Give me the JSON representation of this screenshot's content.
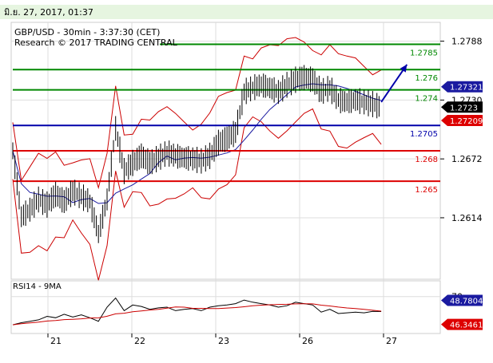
{
  "header": {
    "date_text": "มิ.ย. 27, 2017, 01:37"
  },
  "chart_info": {
    "title": "GBP/USD - 30min - 3:37:30 (CET)",
    "subtitle": "Research © 2017 TRADING CENTRAL"
  },
  "colors": {
    "header_bg": "#e6f5e0",
    "grid": "#dddddd",
    "price_line": "#000000",
    "bollinger": "#cc0000",
    "moving_average": "#1a1aa0",
    "support": "#dd0000",
    "pivot": "#0000aa",
    "resistance": "#008800",
    "current_tag": "#000000",
    "upper_tag": "#1a1aa0",
    "lower_tag": "#dd0000"
  },
  "chart_data": [
    {
      "type": "line",
      "ylim": [
        1.2555,
        1.2805
      ],
      "x_ticks": [
        "21",
        "22",
        "23",
        "26",
        "27"
      ],
      "y_ticks": [
        "1.2788",
        "1.2730",
        "1.2672",
        "1.2614"
      ],
      "levels": [
        {
          "value": 1.2785,
          "label": "1.2785",
          "kind": "resistance"
        },
        {
          "value": 1.276,
          "label": "1.276",
          "kind": "resistance"
        },
        {
          "value": 1.274,
          "label": "1.274",
          "kind": "resistance"
        },
        {
          "value": 1.2705,
          "label": "1.2705",
          "kind": "pivot"
        },
        {
          "value": 1.268,
          "label": "1.268",
          "kind": "support"
        },
        {
          "value": 1.265,
          "label": "1.265",
          "kind": "support"
        }
      ],
      "price_tags": [
        {
          "value": 1.27321,
          "label": "1.27321",
          "kind": "upper"
        },
        {
          "value": 1.2723,
          "label": "1.2723",
          "kind": "current"
        },
        {
          "value": 1.27209,
          "label": "1.27209",
          "kind": "lower"
        }
      ],
      "price_path": [
        [
          0,
          1.268
        ],
        [
          1,
          1.2615
        ],
        [
          2,
          1.2622
        ],
        [
          3,
          1.2632
        ],
        [
          4,
          1.2627
        ],
        [
          5,
          1.2637
        ],
        [
          6,
          1.263
        ],
        [
          7,
          1.264
        ],
        [
          8,
          1.2635
        ],
        [
          9,
          1.263
        ],
        [
          10,
          1.2598
        ],
        [
          11,
          1.2632
        ],
        [
          12,
          1.2702
        ],
        [
          13,
          1.266
        ],
        [
          14,
          1.2668
        ],
        [
          15,
          1.2675
        ],
        [
          16,
          1.2668
        ],
        [
          17,
          1.2673
        ],
        [
          18,
          1.2678
        ],
        [
          19,
          1.2675
        ],
        [
          20,
          1.2673
        ],
        [
          21,
          1.2672
        ],
        [
          22,
          1.267
        ],
        [
          23,
          1.2675
        ],
        [
          24,
          1.2688
        ],
        [
          25,
          1.2692
        ],
        [
          26,
          1.2698
        ],
        [
          27,
          1.2738
        ],
        [
          28,
          1.2742
        ],
        [
          29,
          1.2745
        ],
        [
          30,
          1.2742
        ],
        [
          31,
          1.2738
        ],
        [
          32,
          1.2745
        ],
        [
          33,
          1.275
        ],
        [
          34,
          1.2752
        ],
        [
          35,
          1.275
        ],
        [
          36,
          1.2738
        ],
        [
          37,
          1.2742
        ],
        [
          38,
          1.273
        ],
        [
          39,
          1.2728
        ],
        [
          40,
          1.273
        ],
        [
          41,
          1.2728
        ],
        [
          42,
          1.2726
        ],
        [
          43,
          1.2723
        ]
      ],
      "forecast_arrow": {
        "from": [
          43,
          1.2728
        ],
        "to": [
          46,
          1.2765
        ]
      },
      "arrow_color": "#0000aa"
    },
    {
      "type": "line",
      "title": "RSI14 - 9MA",
      "ylim": [
        20,
        90
      ],
      "y_ticks": [
        "70"
      ],
      "price_tags": [
        {
          "value": 48.7804,
          "label": "48.7804",
          "kind": "upper"
        },
        {
          "value": 46.3461,
          "label": "46.3461",
          "kind": "lower"
        }
      ],
      "rsi_path": [
        [
          0,
          30
        ],
        [
          1,
          33
        ],
        [
          2,
          35
        ],
        [
          3,
          37
        ],
        [
          4,
          42
        ],
        [
          5,
          40
        ],
        [
          6,
          45
        ],
        [
          7,
          41
        ],
        [
          8,
          44
        ],
        [
          9,
          40
        ],
        [
          10,
          35
        ],
        [
          11,
          55
        ],
        [
          12,
          68
        ],
        [
          13,
          50
        ],
        [
          14,
          58
        ],
        [
          15,
          56
        ],
        [
          16,
          52
        ],
        [
          17,
          54
        ],
        [
          18,
          55
        ],
        [
          19,
          50
        ],
        [
          20,
          52
        ],
        [
          21,
          53
        ],
        [
          22,
          50
        ],
        [
          23,
          55
        ],
        [
          24,
          57
        ],
        [
          25,
          58
        ],
        [
          26,
          60
        ],
        [
          27,
          65
        ],
        [
          28,
          62
        ],
        [
          29,
          60
        ],
        [
          30,
          58
        ],
        [
          31,
          55
        ],
        [
          32,
          57
        ],
        [
          33,
          62
        ],
        [
          34,
          60
        ],
        [
          35,
          58
        ],
        [
          36,
          48
        ],
        [
          37,
          52
        ],
        [
          38,
          46
        ],
        [
          39,
          47
        ],
        [
          40,
          48
        ],
        [
          41,
          47
        ],
        [
          42,
          49
        ],
        [
          43,
          48.8
        ]
      ]
    }
  ]
}
